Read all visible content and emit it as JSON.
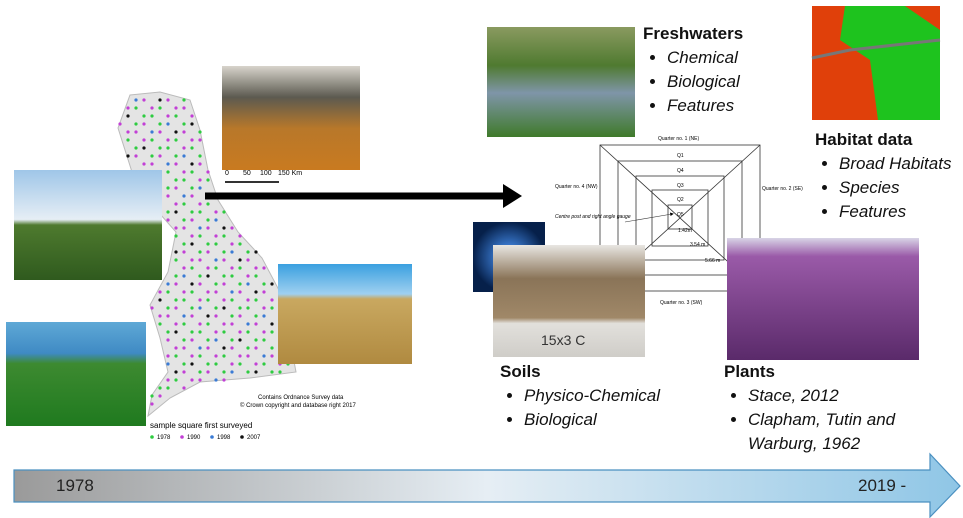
{
  "sections": {
    "freshwaters": {
      "title": "Freshwaters",
      "items": [
        "Chemical",
        "Biological",
        "Features"
      ]
    },
    "habitat": {
      "title": "Habitat data",
      "items": [
        "Broad Habitats",
        "Species",
        "Features"
      ]
    },
    "soils": {
      "title": "Soils",
      "items": [
        "Physico-Chemical",
        "Biological"
      ]
    },
    "plants": {
      "title": "Plants",
      "items": [
        "Stace, 2012",
        "Clapham, Tutin and Warburg, 1962"
      ]
    }
  },
  "map": {
    "scale_labels": [
      "0",
      "50",
      "100",
      "150 Km"
    ],
    "copyright": [
      "Contains Ordnance Survey data",
      "© Crown copyright and database right 2017"
    ],
    "legend_title": "sample square first surveyed",
    "legend": [
      {
        "label": "1978",
        "color": "#2ecc40"
      },
      {
        "label": "1990",
        "color": "#c23fd6"
      },
      {
        "label": "1998",
        "color": "#3a7bd5"
      },
      {
        "label": "2007",
        "color": "#111111"
      }
    ]
  },
  "plot_diagram": {
    "quarters": [
      "Quarter no. 1 (NE)",
      "Quarter no. 2 (SE)",
      "Quarter no. 3 (SW)",
      "Quarter no. 4 (NW)"
    ],
    "plots": [
      "Q1",
      "Q4",
      "Q3",
      "Q2",
      "Q5"
    ],
    "centre": "Centre post and right angle gauge",
    "distances": [
      "1.42m",
      "3.54 m",
      "5.66 m"
    ]
  },
  "soil_sample_label": "15x3 C",
  "timeline": {
    "start": "1978",
    "end": "2019 -"
  }
}
